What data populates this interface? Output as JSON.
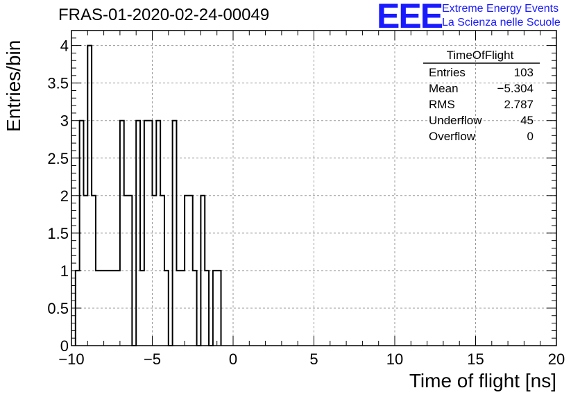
{
  "header": {
    "title": "FRAS-01-2020-02-24-00049",
    "logo_text": "EEE",
    "logo_line1": "Extreme Energy Events",
    "logo_line2": "La Scienza nelle Scuole",
    "logo_color": "#1a1aff"
  },
  "stats_box": {
    "title": "TimeOfFlight",
    "rows": [
      {
        "label": "Entries",
        "value": "103"
      },
      {
        "label": "Mean",
        "value": "−5.304"
      },
      {
        "label": "RMS",
        "value": "2.787"
      },
      {
        "label": "Underflow",
        "value": "45"
      },
      {
        "label": "Overflow",
        "value": "0"
      }
    ]
  },
  "chart_data": {
    "type": "histogram",
    "title": "FRAS-01-2020-02-24-00049",
    "xlabel": "Time of flight [ns]",
    "ylabel": "Entries/bin",
    "xlim": [
      -10,
      20
    ],
    "ylim": [
      0,
      4.2
    ],
    "x_ticks": [
      -10,
      -5,
      0,
      5,
      10,
      15,
      20
    ],
    "x_tick_labels": [
      "−10",
      "−5",
      "0",
      "5",
      "10",
      "15",
      "20"
    ],
    "y_ticks": [
      0,
      0.5,
      1,
      1.5,
      2,
      2.5,
      3,
      3.5,
      4
    ],
    "y_tick_labels": [
      "0",
      "0.5",
      "1",
      "1.5",
      "2",
      "2.5",
      "3",
      "3.5",
      "4"
    ],
    "grid": true,
    "bin_width": 0.25,
    "bin_start": -9.75,
    "values": [
      1,
      3,
      2,
      4,
      2,
      1,
      1,
      1,
      1,
      1,
      1,
      3,
      2,
      2,
      0,
      3,
      1,
      3,
      3,
      2,
      3,
      2,
      1,
      0,
      3,
      1,
      1,
      2,
      2,
      1,
      0,
      2,
      1,
      0,
      1,
      1
    ]
  }
}
